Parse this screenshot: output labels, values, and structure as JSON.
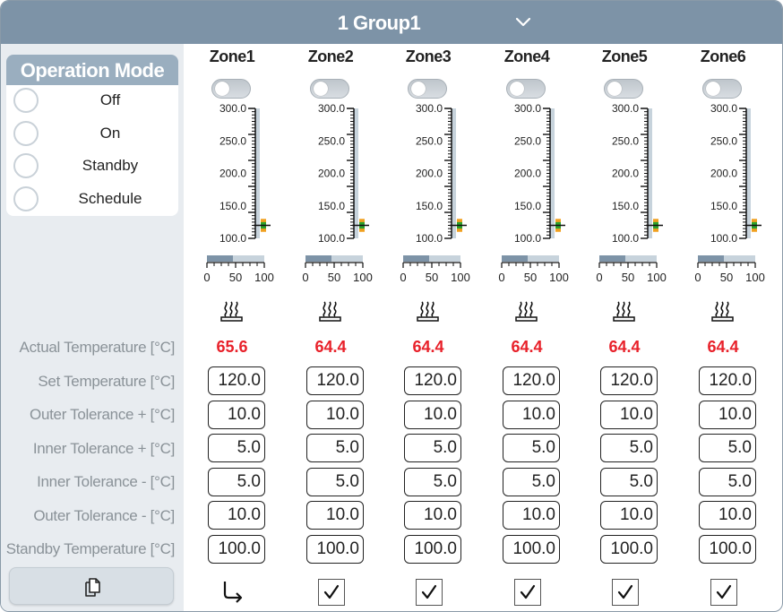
{
  "header": {
    "group_title": "1 Group1",
    "chevron_icon": "chevron-down-icon"
  },
  "operation_mode": {
    "title": "Operation Mode",
    "options": [
      {
        "label": "Off",
        "selected": false
      },
      {
        "label": "On",
        "selected": false
      },
      {
        "label": "Standby",
        "selected": false
      },
      {
        "label": "Schedule",
        "selected": false
      }
    ]
  },
  "row_labels": {
    "actual": "Actual Temperature [°C]",
    "set": "Set Temperature [°C]",
    "outer_plus": "Outer Tolerance + [°C]",
    "inner_plus": "Inner Tolerance + [°C]",
    "inner_minus": "Inner Tolerance - [°C]",
    "outer_minus": "Outer Tolerance - [°C]",
    "standby": "Standby Temperature [°C]"
  },
  "copy_button_icon": "copy-document-icon",
  "scale": {
    "ticks": [
      "300.0",
      "250.0",
      "200.0",
      "150.0",
      "100.0"
    ],
    "min": 100,
    "max": 300,
    "power_ticks": [
      "0",
      "50",
      "100"
    ]
  },
  "colors": {
    "accent": "#7d93a7",
    "actual_value": "#e8212a",
    "tolerance_outer": "#f0a020",
    "tolerance_inner": "#2ca02c"
  },
  "zones": [
    {
      "name": "Zone1",
      "enabled": false,
      "actual": "65.6",
      "power_percent": 45,
      "set": "120.0",
      "outer_plus": "10.0",
      "inner_plus": "5.0",
      "inner_minus": "5.0",
      "outer_minus": "10.0",
      "standby": "100.0",
      "footer": "link-arrow-icon"
    },
    {
      "name": "Zone2",
      "enabled": false,
      "actual": "64.4",
      "power_percent": 45,
      "set": "120.0",
      "outer_plus": "10.0",
      "inner_plus": "5.0",
      "inner_minus": "5.0",
      "outer_minus": "10.0",
      "standby": "100.0",
      "footer": "checkbox-checked"
    },
    {
      "name": "Zone3",
      "enabled": false,
      "actual": "64.4",
      "power_percent": 45,
      "set": "120.0",
      "outer_plus": "10.0",
      "inner_plus": "5.0",
      "inner_minus": "5.0",
      "outer_minus": "10.0",
      "standby": "100.0",
      "footer": "checkbox-checked"
    },
    {
      "name": "Zone4",
      "enabled": false,
      "actual": "64.4",
      "power_percent": 45,
      "set": "120.0",
      "outer_plus": "10.0",
      "inner_plus": "5.0",
      "inner_minus": "5.0",
      "outer_minus": "10.0",
      "standby": "100.0",
      "footer": "checkbox-checked"
    },
    {
      "name": "Zone5",
      "enabled": false,
      "actual": "64.4",
      "power_percent": 45,
      "set": "120.0",
      "outer_plus": "10.0",
      "inner_plus": "5.0",
      "inner_minus": "5.0",
      "outer_minus": "10.0",
      "standby": "100.0",
      "footer": "checkbox-checked"
    },
    {
      "name": "Zone6",
      "enabled": false,
      "actual": "64.4",
      "power_percent": 45,
      "set": "120.0",
      "outer_plus": "10.0",
      "inner_plus": "5.0",
      "inner_minus": "5.0",
      "outer_minus": "10.0",
      "standby": "100.0",
      "footer": "checkbox-checked"
    }
  ]
}
